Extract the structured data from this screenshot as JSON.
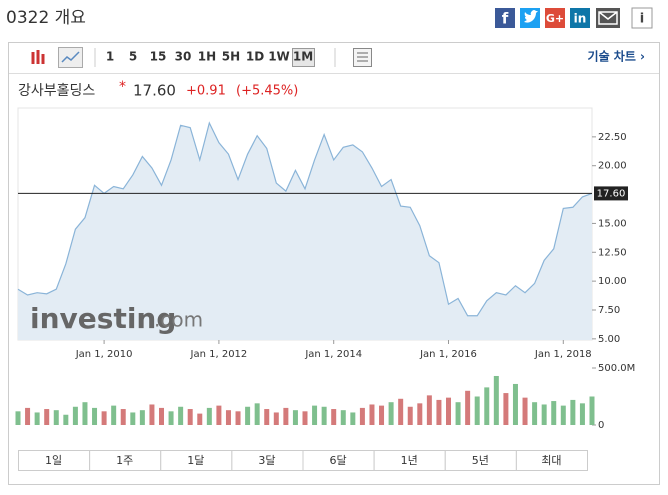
{
  "page_title": "0322 개요",
  "share": {
    "facebook": "f",
    "google": "G+",
    "linkedin": "in",
    "info": "i"
  },
  "toolbar": {
    "intervals": [
      "1",
      "5",
      "15",
      "30",
      "1H",
      "5H",
      "1D",
      "1W",
      "1M"
    ],
    "selected": 8,
    "tech_chart": "기술 차트 ›"
  },
  "header": {
    "name": "강사부홀딩스",
    "star": "*",
    "price": "17.60",
    "change": "+0.91",
    "change_pct": "(+5.45%)"
  },
  "watermark": {
    "brand": "investing",
    "domain": ".com"
  },
  "ranges": [
    "1일",
    "1주",
    "1달",
    "3달",
    "6달",
    "1년",
    "5년",
    "최대"
  ],
  "chart_data": {
    "type": "area",
    "color": "#8ab4d8",
    "fill": "#e3ecf4",
    "categories": [
      null,
      null,
      null,
      null,
      null,
      null,
      null,
      null,
      null,
      "Jan 1, 2010",
      null,
      null,
      null,
      null,
      null,
      null,
      null,
      null,
      null,
      null,
      null,
      "Jan 1, 2012",
      null,
      null,
      null,
      null,
      null,
      null,
      null,
      null,
      null,
      null,
      null,
      "Jan 1, 2014",
      null,
      null,
      null,
      null,
      null,
      null,
      null,
      null,
      null,
      null,
      null,
      "Jan 1, 2016",
      null,
      null,
      null,
      null,
      null,
      null,
      null,
      null,
      null,
      null,
      null,
      "Jan 1, 2018",
      null,
      null,
      null
    ],
    "values": [
      9.3,
      8.8,
      9.0,
      8.9,
      9.3,
      11.5,
      14.5,
      15.5,
      18.3,
      17.6,
      18.2,
      18.0,
      19.2,
      20.8,
      19.8,
      18.3,
      20.5,
      23.5,
      23.3,
      20.5,
      23.7,
      22.0,
      21.0,
      18.8,
      21.0,
      22.6,
      21.5,
      18.5,
      17.8,
      19.6,
      18.0,
      20.5,
      22.7,
      20.5,
      21.6,
      21.8,
      21.2,
      19.8,
      18.2,
      18.8,
      16.5,
      16.4,
      14.8,
      12.2,
      11.6,
      8.0,
      8.5,
      7.0,
      7.0,
      8.3,
      9.0,
      8.8,
      9.6,
      9.0,
      9.8,
      11.8,
      12.8,
      16.3,
      16.4,
      17.3,
      17.6
    ],
    "ylim": [
      4.9,
      25.0
    ],
    "yticks": [
      {
        "value": 5,
        "label": "5.00"
      },
      {
        "value": 7.5,
        "label": "7.50"
      },
      {
        "value": 10,
        "label": "10.00"
      },
      {
        "value": 12.5,
        "label": "12.50"
      },
      {
        "value": 15,
        "label": "15.00"
      },
      {
        "value": 20,
        "label": "20.00"
      },
      {
        "value": 22.5,
        "label": "22.50"
      }
    ],
    "current": {
      "value": 17.6,
      "label": "17.60"
    },
    "volume": {
      "values": [
        120,
        150,
        110,
        140,
        130,
        90,
        160,
        200,
        150,
        120,
        170,
        140,
        110,
        130,
        180,
        150,
        120,
        160,
        140,
        100,
        150,
        170,
        130,
        120,
        160,
        190,
        140,
        110,
        150,
        130,
        120,
        170,
        160,
        140,
        130,
        110,
        150,
        180,
        170,
        200,
        230,
        160,
        190,
        260,
        220,
        240,
        200,
        300,
        250,
        330,
        430,
        280,
        360,
        240,
        200,
        180,
        210,
        170,
        220,
        190,
        250
      ],
      "ylim": [
        0,
        500
      ],
      "yticks": [
        0,
        {
          "value": 500,
          "label": "500.0M"
        }
      ],
      "up_color": "#7fbf8e",
      "down_color": "#d47a7a"
    }
  }
}
